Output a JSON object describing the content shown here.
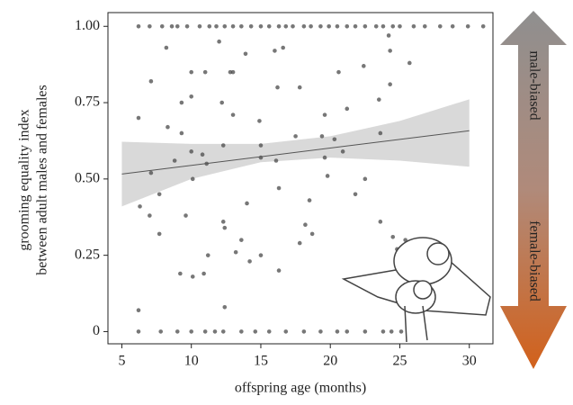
{
  "chart_data": {
    "type": "scatter",
    "x_label": "offspring age (months)",
    "y_label": [
      "grooming equality index",
      "between adult males and females"
    ],
    "annotations": {
      "top": "male-biased",
      "bottom": "female-biased"
    },
    "xlim": [
      4,
      31.7
    ],
    "ylim": [
      -0.04,
      1.045
    ],
    "xticks": [
      5,
      10,
      15,
      20,
      25,
      30
    ],
    "yticks": [
      0,
      0.25,
      {
        "value": 0.5,
        "label": "0.50"
      },
      0.75,
      {
        "value": 1,
        "label": "1.00"
      }
    ],
    "color": "#4a4a4a",
    "x": [
      6.2,
      7.0,
      7.9,
      8.6,
      9.0,
      9.7,
      10.6,
      11.3,
      11.8,
      12.4,
      13.0,
      13.6,
      14.3,
      15.0,
      15.6,
      16.3,
      16.8,
      17.3,
      18.1,
      18.6,
      19.3,
      19.9,
      20.5,
      21.2,
      21.8,
      22.5,
      23.3,
      23.8,
      24.5,
      25.0,
      26.0,
      26.8,
      27.9,
      28.8,
      29.9,
      31.0,
      6.2,
      7.8,
      9.0,
      10.0,
      11.0,
      11.7,
      12.3,
      13.6,
      14.6,
      15.6,
      16.8,
      18.1,
      19.3,
      20.5,
      21.2,
      22.5,
      23.8,
      24.4,
      25.1,
      6.2,
      6.2,
      6.3,
      7.1,
      7.1,
      7.0,
      7.7,
      7.7,
      8.2,
      8.3,
      8.8,
      9.2,
      9.3,
      9.3,
      9.6,
      10.0,
      10.0,
      10.0,
      10.1,
      10.1,
      10.8,
      10.9,
      11.0,
      11.1,
      11.2,
      12.0,
      12.2,
      12.3,
      12.3,
      12.4,
      12.4,
      12.8,
      13.0,
      13.0,
      13.2,
      13.6,
      13.9,
      14.0,
      14.2,
      14.9,
      15.0,
      15.0,
      15.0,
      16.0,
      16.2,
      16.1,
      16.3,
      16.3,
      16.6,
      17.8,
      17.5,
      17.8,
      18.2,
      18.5,
      18.7,
      19.4,
      19.6,
      19.6,
      19.8,
      20.3,
      20.6,
      20.9,
      21.2,
      21.8,
      22.4,
      22.5,
      23.5,
      23.6,
      23.6,
      24.2,
      24.3,
      24.3,
      24.5,
      24.8,
      25.7,
      25.4
    ],
    "values": [
      1,
      1,
      1,
      1,
      1,
      1,
      1,
      1,
      1,
      1,
      1,
      1,
      1,
      1,
      1,
      1,
      1,
      1,
      1,
      1,
      1,
      1,
      1,
      1,
      1,
      1,
      1,
      1,
      1,
      1,
      1,
      1,
      1,
      1,
      1,
      1,
      0,
      0,
      0,
      0,
      0,
      0,
      0,
      0,
      0,
      0,
      0,
      0,
      0,
      0,
      0,
      0,
      0,
      0,
      0,
      0.07,
      0.7,
      0.41,
      0.82,
      0.52,
      0.38,
      0.32,
      0.45,
      0.93,
      0.67,
      0.56,
      0.19,
      0.75,
      0.65,
      0.38,
      0.85,
      0.77,
      0.59,
      0.5,
      0.18,
      0.58,
      0.19,
      0.85,
      0.55,
      0.25,
      0.95,
      0.75,
      0.61,
      0.36,
      0.08,
      0.34,
      0.85,
      0.85,
      0.71,
      0.26,
      0.3,
      0.91,
      0.42,
      0.23,
      0.69,
      0.61,
      0.57,
      0.25,
      0.92,
      0.8,
      0.56,
      0.47,
      0.2,
      0.93,
      0.8,
      0.64,
      0.29,
      0.35,
      0.43,
      0.32,
      0.64,
      0.71,
      0.57,
      0.51,
      0.63,
      0.85,
      0.59,
      0.73,
      0.45,
      0.87,
      0.5,
      0.76,
      0.65,
      0.36,
      0.97,
      0.81,
      0.92,
      0.31,
      0.27,
      0.88,
      0.3
    ],
    "regression": {
      "x": [
        5,
        30
      ],
      "values": [
        0.516,
        0.658
      ],
      "color": "#555555"
    },
    "band": {
      "x": [
        5,
        10,
        15,
        20,
        25,
        30
      ],
      "lower": [
        0.41,
        0.5,
        0.555,
        0.57,
        0.56,
        0.54
      ],
      "upper": [
        0.622,
        0.615,
        0.615,
        0.64,
        0.69,
        0.761
      ],
      "color": "#d9d9d9"
    }
  }
}
